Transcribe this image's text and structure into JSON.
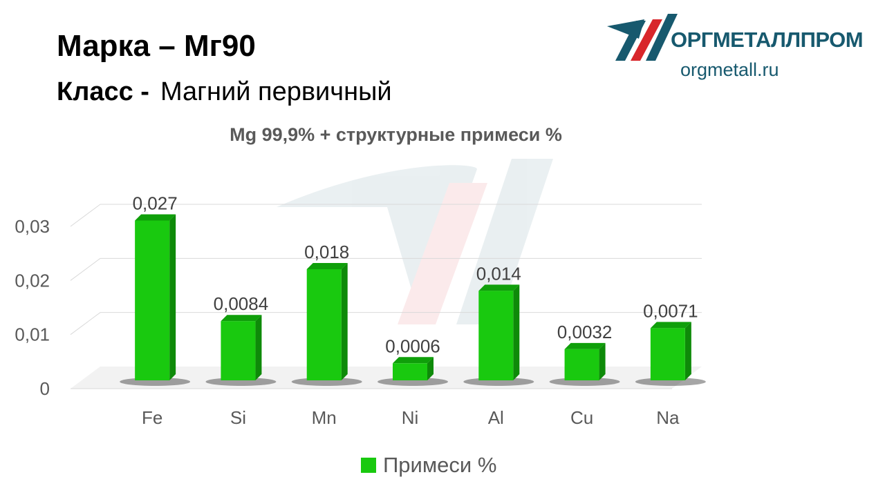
{
  "header": {
    "mark_line": "Марка – Мг90",
    "class_label": "Класс -",
    "class_value": "Магний первичный"
  },
  "logo": {
    "name": "ОРГМЕТАЛЛПРОМ",
    "url": "orgmetall.ru",
    "colors": {
      "dark": "#17596e",
      "red": "#d8262b"
    }
  },
  "chart_data": {
    "type": "bar",
    "title": "Mg 99,9% + структурные примеси %",
    "categories": [
      "Fe",
      "Si",
      "Mn",
      "Ni",
      "Al",
      "Cu",
      "Na"
    ],
    "series": [
      {
        "name": "Примеси %",
        "values": [
          0.027,
          0.0084,
          0.018,
          0.0006,
          0.014,
          0.0032,
          0.0071
        ],
        "labels": [
          "0,027",
          "0,0084",
          "0,018",
          "0,0006",
          "0,014",
          "0,0032",
          "0,0071"
        ],
        "color": "#19c90f"
      }
    ],
    "ylim": [
      0,
      0.03
    ],
    "yticks": [
      {
        "value": 0,
        "label": "0"
      },
      {
        "value": 0.01,
        "label": "0,01"
      },
      {
        "value": 0.02,
        "label": "0,02"
      },
      {
        "value": 0.03,
        "label": "0,03"
      }
    ],
    "grid": true,
    "legend": "bottom",
    "style": "3d"
  }
}
